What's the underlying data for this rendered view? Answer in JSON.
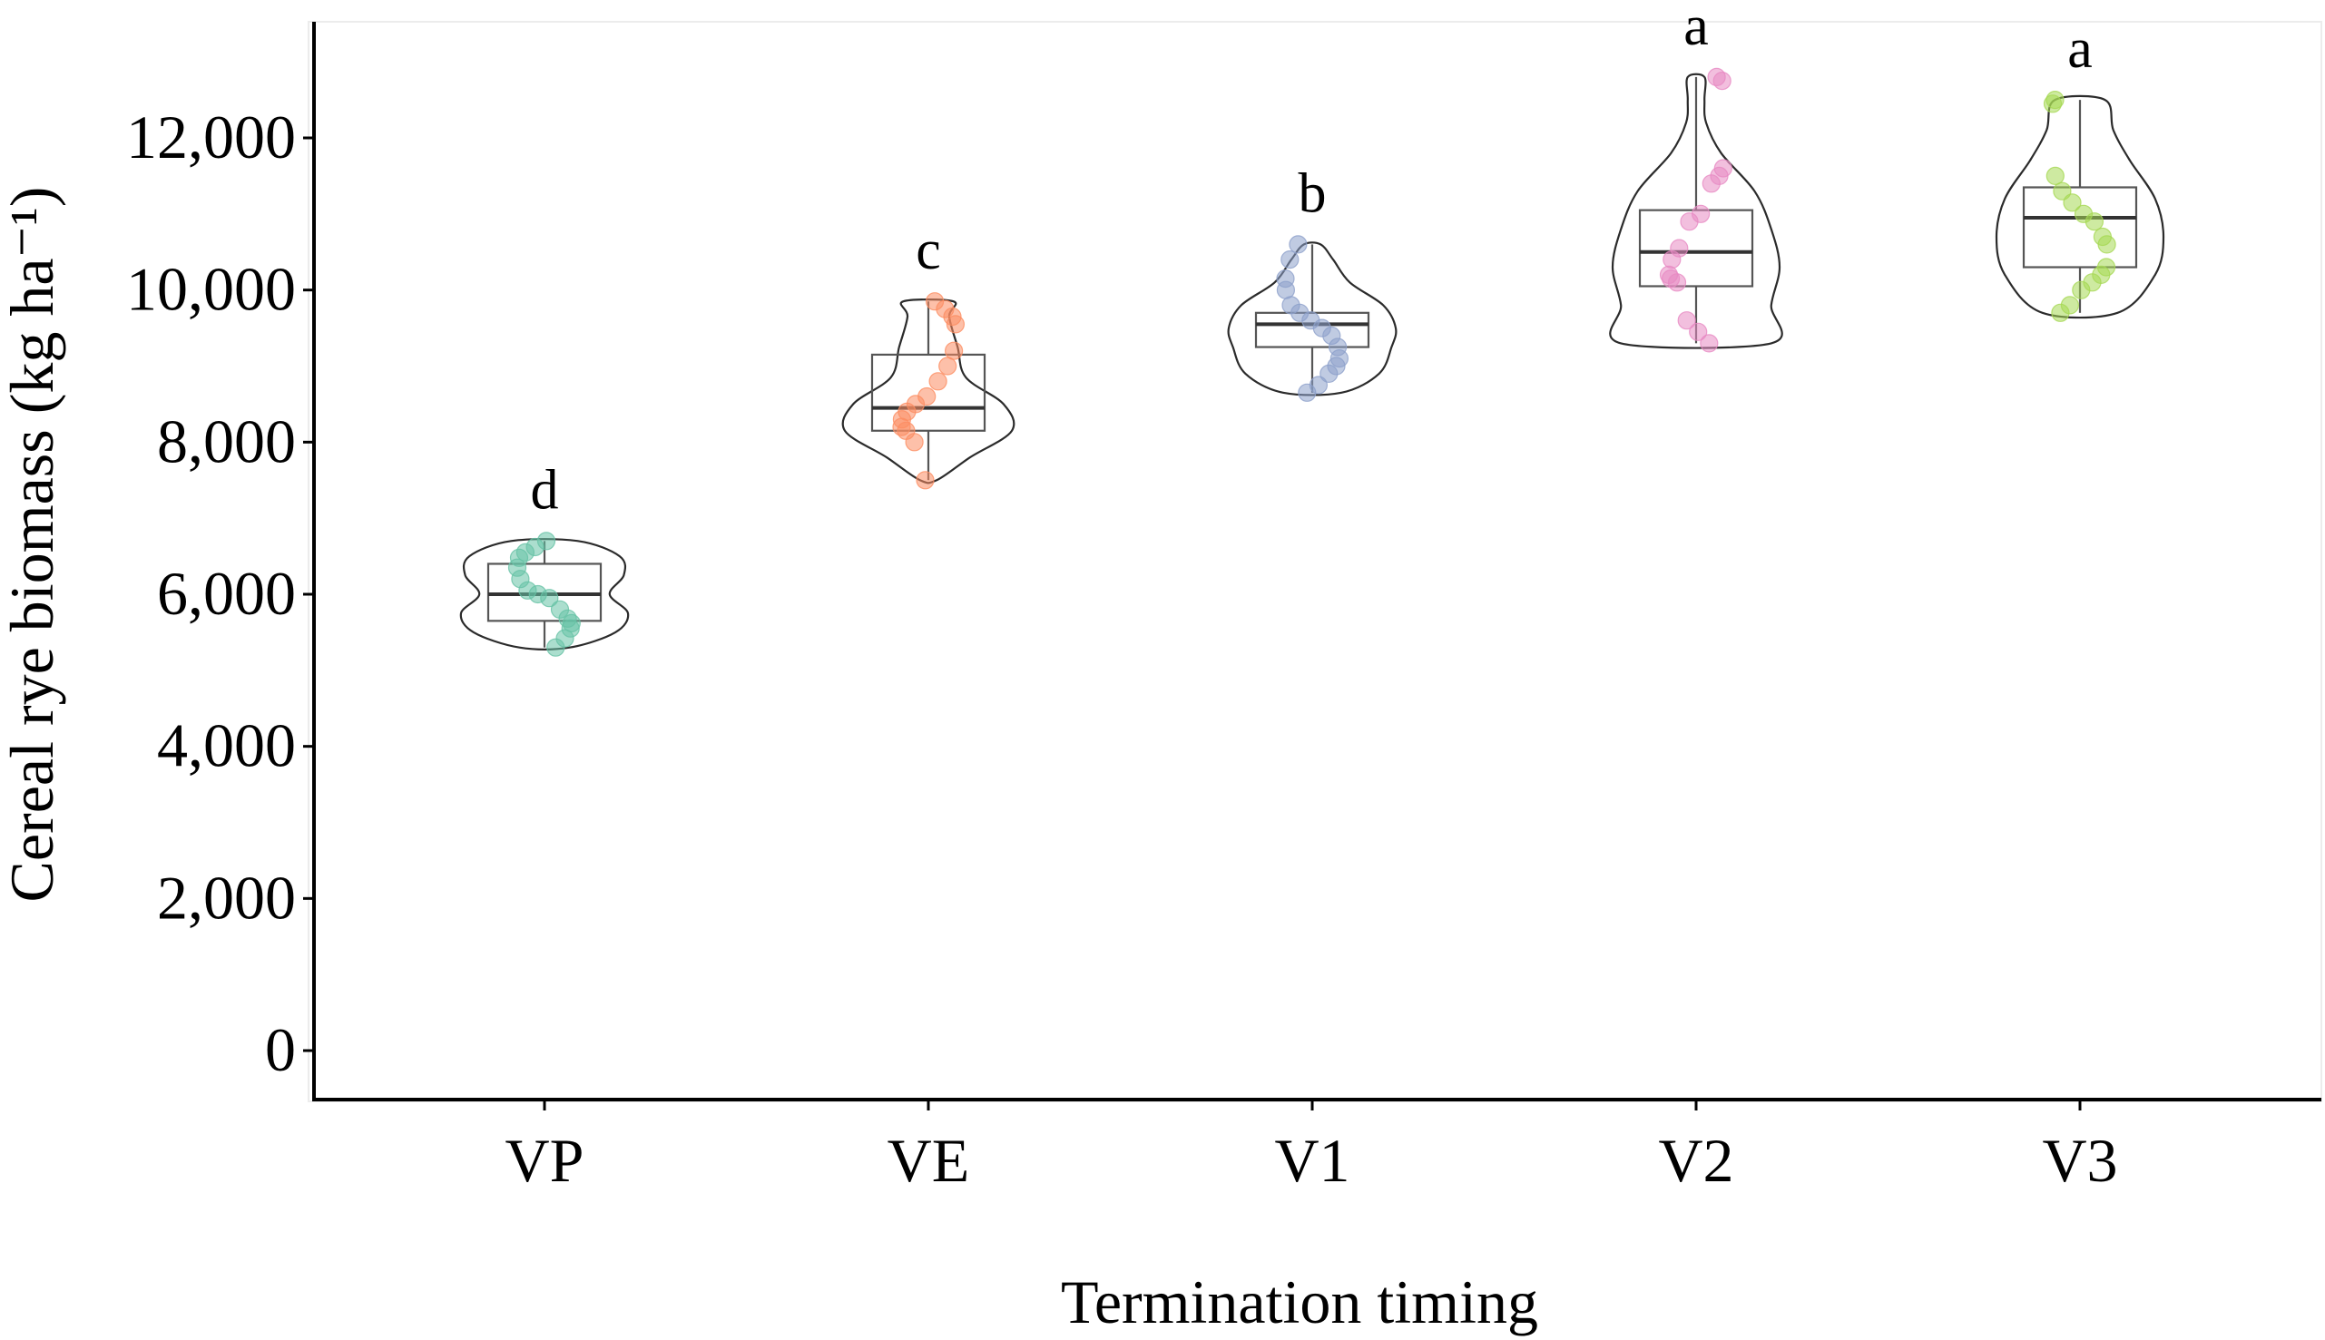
{
  "chart_data": {
    "type": "violin-box-jitter",
    "title": "",
    "xlabel": "Termination timing",
    "ylabel": "Cereal rye biomass (kg ha⁻¹)",
    "ylim": [
      -600,
      13300
    ],
    "yticks": [
      0,
      2000,
      4000,
      6000,
      8000,
      10000,
      12000
    ],
    "ytick_labels": [
      "0",
      "2,000",
      "4,000",
      "6,000",
      "8,000",
      "10,000",
      "12,000"
    ],
    "categories": [
      "VP",
      "VE",
      "V1",
      "V2",
      "V3"
    ],
    "groups": [
      {
        "name": "VP",
        "letter": "d",
        "color": "#66c2a5",
        "box": {
          "min": 5300,
          "q1": 5650,
          "median": 6000,
          "q3": 6400,
          "max": 6700
        },
        "violin": [
          [
            5300,
            0.3
          ],
          [
            5500,
            0.85
          ],
          [
            5750,
            1.0
          ],
          [
            6000,
            0.78
          ],
          [
            6250,
            0.95
          ],
          [
            6500,
            0.9
          ],
          [
            6700,
            0.4
          ]
        ],
        "points": [
          5300,
          5420,
          5550,
          5620,
          5680,
          5800,
          5950,
          6000,
          6050,
          6200,
          6350,
          6480,
          6550,
          6620,
          6700
        ]
      },
      {
        "name": "VE",
        "letter": "c",
        "color": "#fc8d62",
        "box": {
          "min": 7500,
          "q1": 8150,
          "median": 8450,
          "q3": 9150,
          "max": 9850
        },
        "violin": [
          [
            7500,
            0.1
          ],
          [
            7800,
            0.5
          ],
          [
            8150,
            1.0
          ],
          [
            8500,
            0.9
          ],
          [
            8850,
            0.45
          ],
          [
            9250,
            0.35
          ],
          [
            9650,
            0.25
          ],
          [
            9850,
            0.3
          ]
        ],
        "points": [
          7500,
          8000,
          8150,
          8200,
          8300,
          8400,
          8500,
          8600,
          8800,
          9000,
          9200,
          9550,
          9650,
          9750,
          9850
        ]
      },
      {
        "name": "V1",
        "letter": "b",
        "color": "#8da0cb",
        "box": {
          "min": 8650,
          "q1": 9250,
          "median": 9550,
          "q3": 9700,
          "max": 10600
        },
        "violin": [
          [
            8650,
            0.35
          ],
          [
            8900,
            0.8
          ],
          [
            9250,
            0.95
          ],
          [
            9500,
            1.0
          ],
          [
            9800,
            0.85
          ],
          [
            10100,
            0.45
          ],
          [
            10400,
            0.25
          ],
          [
            10600,
            0.1
          ]
        ],
        "points": [
          8650,
          8750,
          8900,
          9000,
          9100,
          9250,
          9400,
          9500,
          9600,
          9700,
          9800,
          10000,
          10150,
          10400,
          10600
        ]
      },
      {
        "name": "V2",
        "letter": "a",
        "color": "#e78ac3",
        "box": {
          "min": 9300,
          "q1": 10050,
          "median": 10500,
          "q3": 11050,
          "max": 12800
        },
        "violin": [
          [
            9300,
            0.9
          ],
          [
            9800,
            0.9
          ],
          [
            10300,
            1.0
          ],
          [
            10800,
            0.9
          ],
          [
            11300,
            0.7
          ],
          [
            11800,
            0.3
          ],
          [
            12200,
            0.12
          ],
          [
            12500,
            0.1
          ],
          [
            12800,
            0.1
          ]
        ],
        "points": [
          9300,
          9450,
          9600,
          10100,
          10150,
          10200,
          10400,
          10550,
          10900,
          11000,
          11400,
          11500,
          11600,
          12750,
          12800
        ]
      },
      {
        "name": "V3",
        "letter": "a",
        "color": "#a6d854",
        "box": {
          "min": 9700,
          "q1": 10300,
          "median": 10950,
          "q3": 11350,
          "max": 12500
        },
        "violin": [
          [
            9700,
            0.45
          ],
          [
            10200,
            0.9
          ],
          [
            10700,
            1.0
          ],
          [
            11200,
            0.9
          ],
          [
            11700,
            0.6
          ],
          [
            12100,
            0.4
          ],
          [
            12500,
            0.3
          ]
        ],
        "points": [
          9700,
          9800,
          10000,
          10100,
          10200,
          10300,
          10600,
          10700,
          10900,
          11000,
          11150,
          11300,
          11500,
          12450,
          12500
        ]
      }
    ]
  }
}
